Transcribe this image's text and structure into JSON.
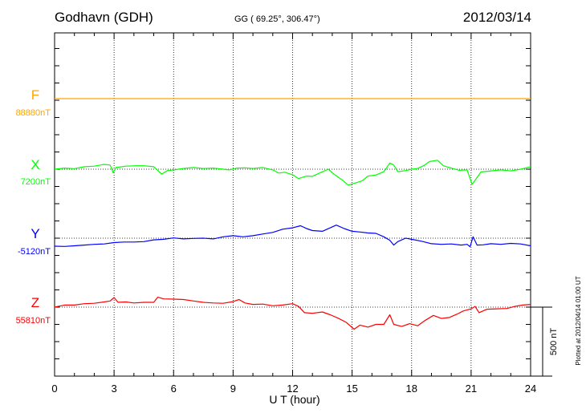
{
  "header": {
    "station": "Godhavn (GDH)",
    "coords": "GG ( 69.25°, 306.47°)",
    "date": "2012/03/14"
  },
  "side_note": "Plotted at 2012/04/14 01:00 UT",
  "scale_bar_label": "500 nT",
  "chart_data": {
    "type": "line",
    "xlabel": "U T (hour)",
    "xlim": [
      0,
      24
    ],
    "x_ticks": [
      "0",
      "3",
      "6",
      "9",
      "12",
      "15",
      "18",
      "21",
      "24"
    ],
    "nt_per_scale_bar": 500,
    "grid": true,
    "series": [
      {
        "name": "F",
        "baseline_label": "88880nT",
        "baseline": 88880,
        "color": "#ffa500",
        "points": [
          [
            0,
            0
          ],
          [
            24,
            0
          ]
        ]
      },
      {
        "name": "X",
        "baseline_label": "7200nT",
        "baseline": 7200,
        "color": "#00ff00",
        "points": [
          [
            0,
            0
          ],
          [
            0.5,
            8
          ],
          [
            1,
            4
          ],
          [
            1.5,
            18
          ],
          [
            2,
            22
          ],
          [
            2.5,
            35
          ],
          [
            2.8,
            30
          ],
          [
            2.95,
            -25
          ],
          [
            3.1,
            12
          ],
          [
            3.6,
            22
          ],
          [
            4.1,
            25
          ],
          [
            4.5,
            25
          ],
          [
            5,
            18
          ],
          [
            5.4,
            -35
          ],
          [
            5.7,
            -10
          ],
          [
            6,
            -5
          ],
          [
            6.5,
            5
          ],
          [
            7,
            12
          ],
          [
            7.5,
            5
          ],
          [
            8,
            8
          ],
          [
            8.5,
            0
          ],
          [
            8.8,
            -5
          ],
          [
            9.2,
            8
          ],
          [
            9.6,
            10
          ],
          [
            10,
            5
          ],
          [
            10.5,
            12
          ],
          [
            11,
            -5
          ],
          [
            11.3,
            -28
          ],
          [
            11.6,
            -22
          ],
          [
            12,
            -40
          ],
          [
            12.3,
            -68
          ],
          [
            12.7,
            -50
          ],
          [
            13,
            -52
          ],
          [
            13.4,
            -25
          ],
          [
            13.8,
            0
          ],
          [
            14.1,
            -38
          ],
          [
            14.5,
            -78
          ],
          [
            14.8,
            -115
          ],
          [
            15.2,
            -98
          ],
          [
            15.5,
            -85
          ],
          [
            15.8,
            -50
          ],
          [
            16.2,
            -42
          ],
          [
            16.6,
            -18
          ],
          [
            16.9,
            45
          ],
          [
            17.1,
            30
          ],
          [
            17.3,
            -18
          ],
          [
            17.7,
            -10
          ],
          [
            18,
            0
          ],
          [
            18.3,
            5
          ],
          [
            18.6,
            25
          ],
          [
            18.9,
            55
          ],
          [
            19.3,
            65
          ],
          [
            19.6,
            25
          ],
          [
            20,
            8
          ],
          [
            20.4,
            -8
          ],
          [
            20.8,
            -5
          ],
          [
            21.05,
            -110
          ],
          [
            21.25,
            -70
          ],
          [
            21.5,
            -20
          ],
          [
            22,
            -12
          ],
          [
            22.5,
            -5
          ],
          [
            23,
            -12
          ],
          [
            23.5,
            0
          ],
          [
            24,
            18
          ]
        ]
      },
      {
        "name": "Y",
        "baseline_label": "-5120nT",
        "baseline": -5120,
        "color": "#0000ff",
        "points": [
          [
            0,
            -58
          ],
          [
            0.5,
            -60
          ],
          [
            1,
            -55
          ],
          [
            1.5,
            -50
          ],
          [
            2,
            -45
          ],
          [
            2.5,
            -42
          ],
          [
            3,
            -32
          ],
          [
            3.5,
            -28
          ],
          [
            4,
            -28
          ],
          [
            4.5,
            -25
          ],
          [
            5,
            -12
          ],
          [
            5.5,
            -8
          ],
          [
            6,
            2
          ],
          [
            6.5,
            -5
          ],
          [
            7,
            -2
          ],
          [
            7.5,
            0
          ],
          [
            8,
            -5
          ],
          [
            8.5,
            10
          ],
          [
            9,
            18
          ],
          [
            9.5,
            10
          ],
          [
            10,
            18
          ],
          [
            10.5,
            30
          ],
          [
            11,
            42
          ],
          [
            11.5,
            65
          ],
          [
            12,
            75
          ],
          [
            12.4,
            90
          ],
          [
            12.7,
            70
          ],
          [
            13,
            55
          ],
          [
            13.5,
            50
          ],
          [
            13.9,
            75
          ],
          [
            14.2,
            95
          ],
          [
            14.6,
            70
          ],
          [
            15,
            50
          ],
          [
            15.4,
            45
          ],
          [
            15.8,
            38
          ],
          [
            16.2,
            35
          ],
          [
            16.6,
            10
          ],
          [
            16.9,
            -15
          ],
          [
            17.1,
            -50
          ],
          [
            17.3,
            -25
          ],
          [
            17.7,
            0
          ],
          [
            18,
            -8
          ],
          [
            18.5,
            -22
          ],
          [
            19,
            -40
          ],
          [
            19.5,
            -45
          ],
          [
            20,
            -42
          ],
          [
            20.5,
            -50
          ],
          [
            20.8,
            -45
          ],
          [
            20.95,
            -62
          ],
          [
            21.1,
            10
          ],
          [
            21.3,
            -50
          ],
          [
            21.6,
            -48
          ],
          [
            22,
            -40
          ],
          [
            22.5,
            -45
          ],
          [
            23,
            -38
          ],
          [
            23.5,
            -42
          ],
          [
            24,
            -55
          ]
        ]
      },
      {
        "name": "Z",
        "baseline_label": "55810nT",
        "baseline": 55810,
        "color": "#ff0000",
        "points": [
          [
            0,
            0
          ],
          [
            0.5,
            15
          ],
          [
            1,
            15
          ],
          [
            1.5,
            25
          ],
          [
            2,
            28
          ],
          [
            2.5,
            38
          ],
          [
            2.8,
            45
          ],
          [
            3,
            70
          ],
          [
            3.2,
            35
          ],
          [
            3.6,
            38
          ],
          [
            4,
            30
          ],
          [
            4.5,
            35
          ],
          [
            5,
            35
          ],
          [
            5.2,
            72
          ],
          [
            5.5,
            60
          ],
          [
            6,
            58
          ],
          [
            6.5,
            55
          ],
          [
            7,
            45
          ],
          [
            7.5,
            35
          ],
          [
            8,
            30
          ],
          [
            8.5,
            28
          ],
          [
            9,
            40
          ],
          [
            9.3,
            55
          ],
          [
            9.6,
            30
          ],
          [
            10,
            20
          ],
          [
            10.5,
            22
          ],
          [
            11,
            10
          ],
          [
            11.5,
            15
          ],
          [
            12,
            25
          ],
          [
            12.3,
            5
          ],
          [
            12.6,
            -40
          ],
          [
            13,
            -45
          ],
          [
            13.5,
            -35
          ],
          [
            13.9,
            -55
          ],
          [
            14.3,
            -80
          ],
          [
            14.7,
            -110
          ],
          [
            15.1,
            -160
          ],
          [
            15.4,
            -130
          ],
          [
            15.8,
            -145
          ],
          [
            16.2,
            -125
          ],
          [
            16.6,
            -125
          ],
          [
            16.9,
            -55
          ],
          [
            17.1,
            -125
          ],
          [
            17.5,
            -140
          ],
          [
            17.9,
            -120
          ],
          [
            18.3,
            -135
          ],
          [
            18.7,
            -95
          ],
          [
            19.1,
            -60
          ],
          [
            19.5,
            -82
          ],
          [
            19.9,
            -75
          ],
          [
            20.3,
            -50
          ],
          [
            20.6,
            -28
          ],
          [
            21,
            -12
          ],
          [
            21.2,
            5
          ],
          [
            21.4,
            -40
          ],
          [
            21.8,
            -15
          ],
          [
            22.3,
            -12
          ],
          [
            22.8,
            -10
          ],
          [
            23.2,
            5
          ],
          [
            23.6,
            15
          ],
          [
            24,
            20
          ]
        ]
      }
    ]
  }
}
